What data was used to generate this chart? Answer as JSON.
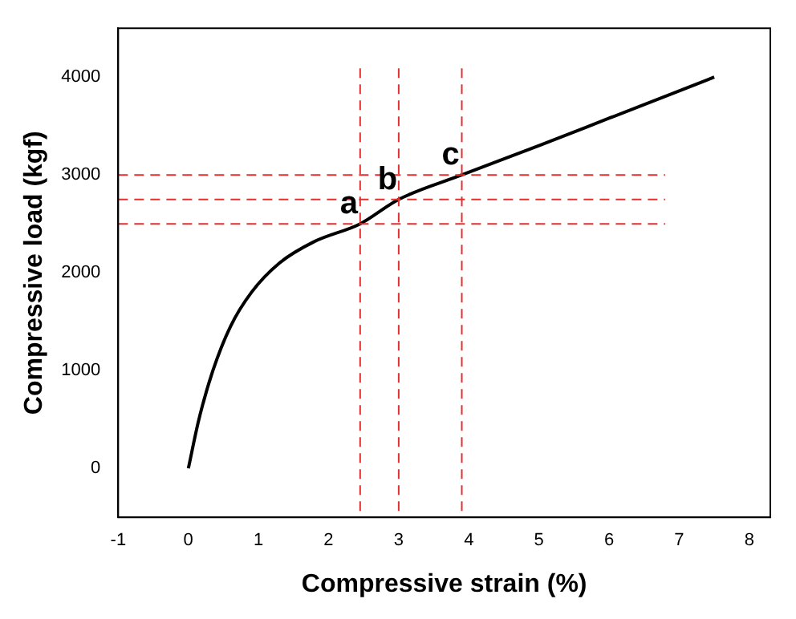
{
  "chart_data": {
    "type": "line",
    "xlabel": "Compressive strain (%)",
    "ylabel": "Compressive load (kgf)",
    "series": [
      {
        "color": "#000000",
        "x": [
          0,
          0.15,
          0.35,
          0.6,
          0.9,
          1.3,
          1.8,
          2.45,
          3,
          3.9,
          5,
          6,
          7,
          7.5
        ],
        "values": [
          0,
          500,
          1000,
          1450,
          1800,
          2100,
          2320,
          2500,
          2750,
          3000,
          3300,
          3580,
          3860,
          4000
        ]
      }
    ],
    "xlim": [
      -1,
      8.3
    ],
    "xticks": [
      -1,
      0,
      1,
      2,
      3,
      4,
      5,
      6,
      7,
      8
    ],
    "ylim": [
      -500,
      4500
    ],
    "yticks": [
      0,
      1000,
      2000,
      3000,
      4000
    ],
    "grid": false,
    "legend": false,
    "marker": "none",
    "line_style": "solid",
    "ref_lines": [
      {
        "axis": "x",
        "value": 2.45,
        "color": "#e03030",
        "line_style": "dashed"
      },
      {
        "axis": "x",
        "value": 3,
        "color": "#e03030",
        "line_style": "dashed"
      },
      {
        "axis": "x",
        "value": 3.9,
        "color": "#e03030",
        "line_style": "dashed"
      },
      {
        "axis": "y",
        "value": 2500,
        "color": "#e03030",
        "line_style": "dashed"
      },
      {
        "axis": "y",
        "value": 2750,
        "color": "#e03030",
        "line_style": "dashed"
      },
      {
        "axis": "y",
        "value": 3000,
        "color": "#e03030",
        "line_style": "dashed"
      }
    ],
    "annotations": [
      {
        "text": "a",
        "x": 2.45,
        "y": 2500
      },
      {
        "text": "b",
        "x": 3,
        "y": 2750
      },
      {
        "text": "c",
        "x": 3.9,
        "y": 3000
      }
    ]
  }
}
